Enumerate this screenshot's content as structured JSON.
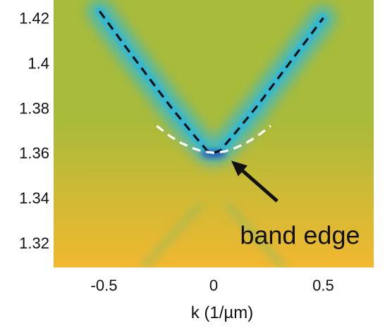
{
  "chart_data": {
    "type": "heatmap",
    "title": "",
    "xlabel": "k (1/µm)",
    "ylabel": "",
    "xlim": [
      -0.73,
      0.73
    ],
    "ylim": [
      1.309,
      1.428
    ],
    "x_ticks": [
      {
        "value": -0.5,
        "label": "-0.5"
      },
      {
        "value": 0,
        "label": "0"
      },
      {
        "value": 0.5,
        "label": "0.5"
      }
    ],
    "y_ticks": [
      {
        "value": 1.42,
        "label": "1.42"
      },
      {
        "value": 1.4,
        "label": "1.4"
      },
      {
        "value": 1.38,
        "label": "1.38"
      },
      {
        "value": 1.36,
        "label": "1.36"
      },
      {
        "value": 1.34,
        "label": "1.34"
      },
      {
        "value": 1.32,
        "label": "1.32"
      }
    ],
    "colors": {
      "background_top": "#a9bb3a",
      "background_bottom": "#f2b830",
      "band": "#35b8d0",
      "band_core": "#2a55b0",
      "lower_band": "#9cbc58",
      "linear_fit": "#111111",
      "parabolic_fit": "#ffffff"
    },
    "series": [
      {
        "style": "black-dashed",
        "x": [
          -0.52,
          -0.4,
          -0.3,
          -0.2,
          -0.1,
          -0.03,
          0,
          0.03,
          0.1,
          0.2,
          0.3,
          0.4,
          0.5
        ],
        "y": [
          1.423,
          1.407,
          1.394,
          1.381,
          1.369,
          1.361,
          1.36,
          1.361,
          1.369,
          1.381,
          1.394,
          1.407,
          1.42
        ]
      },
      {
        "style": "white-dashed",
        "x": [
          -0.26,
          -0.2,
          -0.15,
          -0.1,
          -0.05,
          0,
          0.05,
          0.1,
          0.15,
          0.2,
          0.26
        ],
        "y": [
          1.372,
          1.3675,
          1.3645,
          1.3622,
          1.3606,
          1.36,
          1.3606,
          1.3622,
          1.3645,
          1.3675,
          1.372
        ]
      }
    ],
    "annotations": [
      {
        "text": "band edge",
        "x_text": 0.12,
        "y_text": 1.3195,
        "x_arrow_tip": 0.08,
        "y_arrow_tip": 1.3565,
        "x_arrow_tail": 0.29,
        "y_arrow_tail": 1.3385
      }
    ]
  }
}
